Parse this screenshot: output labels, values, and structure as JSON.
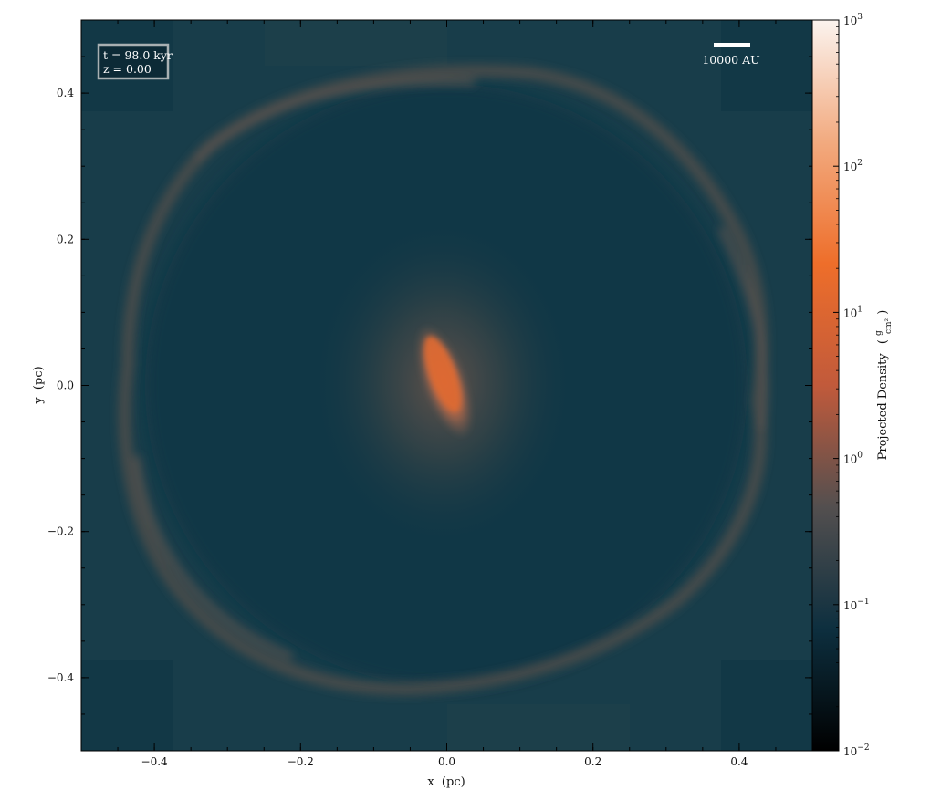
{
  "chart_data": {
    "type": "heatmap",
    "title": "",
    "xlabel": "x  (pc)",
    "ylabel": "y  (pc)",
    "xlim": [
      -0.5,
      0.5
    ],
    "ylim": [
      -0.5,
      0.5
    ],
    "x_ticks": [
      -0.4,
      -0.2,
      0.0,
      0.2,
      0.4
    ],
    "x_tick_labels": [
      "−0.4",
      "−0.2",
      "0.0",
      "0.2",
      "0.4"
    ],
    "y_ticks": [
      0.4,
      0.2,
      0.0,
      -0.2,
      -0.4
    ],
    "y_tick_labels": [
      "0.4",
      "0.2",
      "0.0",
      "−0.2",
      "−0.4"
    ],
    "colorbar": {
      "label": "Projected Density",
      "unit_numerator": "g",
      "unit_denominator": "cm²",
      "scale": "log",
      "range": [
        0.01,
        1000
      ],
      "ticks": [
        {
          "value": 1000,
          "base": "10",
          "exp": "3"
        },
        {
          "value": 100,
          "base": "10",
          "exp": "2"
        },
        {
          "value": 10,
          "base": "10",
          "exp": "1"
        },
        {
          "value": 1,
          "base": "10",
          "exp": "0"
        },
        {
          "value": 0.1,
          "base": "10",
          "exp": "−1"
        },
        {
          "value": 0.01,
          "base": "10",
          "exp": "−2"
        }
      ],
      "colormap": [
        "#000000",
        "#0d2f3f",
        "#534f4f",
        "#c15a3b",
        "#ee6e2a",
        "#f2aa7f",
        "#fbf3ee"
      ]
    },
    "features": {
      "core": {
        "x": 0.0,
        "y": 0.0,
        "peak_density": 4.0,
        "description": "elongated dense core tilted from upper-left to lower-right"
      },
      "shell_radius_pc": 0.43,
      "background_density": 0.12
    },
    "annotations": {
      "time_label": "t = 98.0 kyr",
      "z_label": "z = 0.00",
      "scale_bar_label": "10000 AU",
      "scale_bar_au": 10000
    }
  }
}
